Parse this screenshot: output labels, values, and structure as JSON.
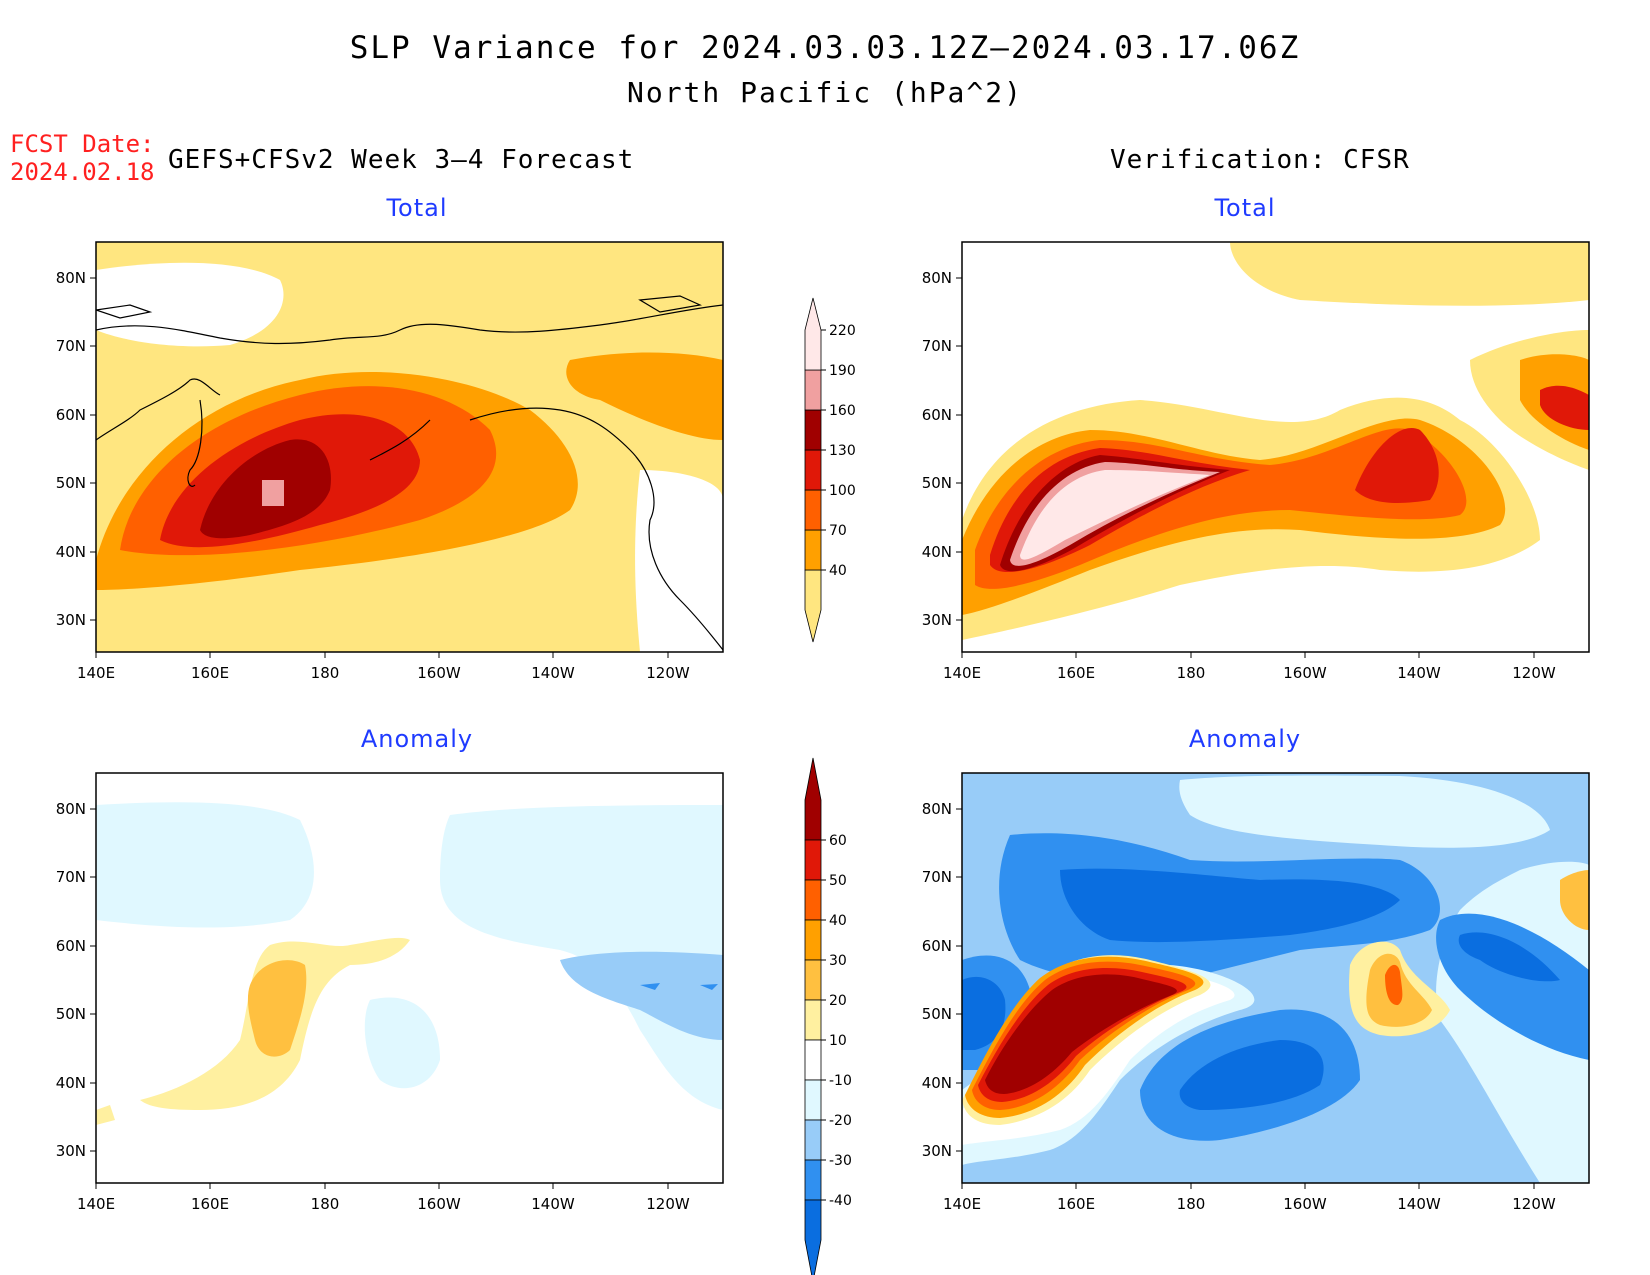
{
  "title": "SLP Variance for 2024.03.03.12Z–2024.03.17.06Z",
  "subtitle": "North Pacific (hPa^2)",
  "fcst_label": "FCST Date:",
  "fcst_date": "2024.02.18",
  "left_heading": "GEFS+CFSv2 Week 3–4 Forecast",
  "right_heading": "Verification: CFSR",
  "panel_titles": {
    "total_left": "Total",
    "total_right": "Total",
    "anomaly_left": "Anomaly",
    "anomaly_right": "Anomaly"
  },
  "lat_ticks": [
    "80N",
    "70N",
    "60N",
    "50N",
    "40N",
    "30N"
  ],
  "lon_ticks": [
    "140E",
    "160E",
    "180",
    "160W",
    "140W",
    "120W"
  ],
  "total_colorbar": {
    "labels": [
      "40",
      "70",
      "100",
      "130",
      "160",
      "190",
      "220"
    ],
    "colors": [
      "#ffe680",
      "#ffa000",
      "#ff6000",
      "#e01808",
      "#a00000",
      "#f0a0a0",
      "#ffe8e8"
    ]
  },
  "anomaly_colorbar": {
    "labels": [
      "-40",
      "-30",
      "-20",
      "-10",
      "10",
      "20",
      "30",
      "40",
      "50",
      "60"
    ],
    "colors": [
      "#0a6ee0",
      "#3090f0",
      "#98ccf8",
      "#e0f8ff",
      "#ffffff",
      "#fff0a0",
      "#ffc040",
      "#ffa000",
      "#ff6000",
      "#e01808",
      "#a00000"
    ]
  },
  "legend_items": {
    "color_low": "#ffe680",
    "color_mid": "#ff6000",
    "color_high": "#a00000",
    "anom_neg": "#3090f0",
    "anom_pos": "#e01808"
  }
}
